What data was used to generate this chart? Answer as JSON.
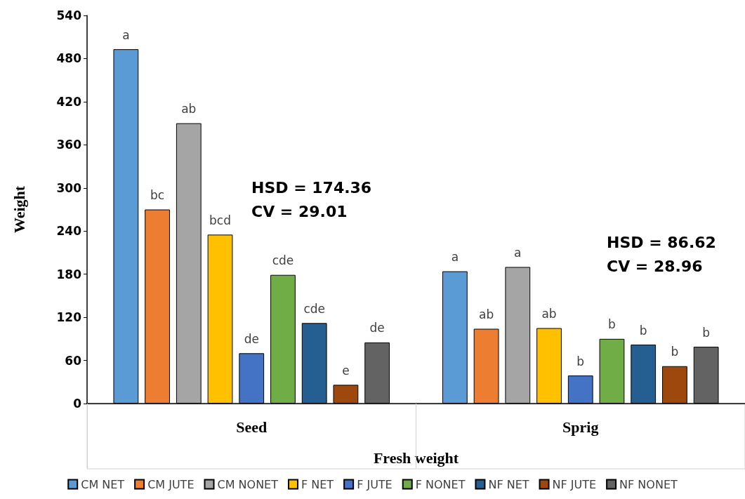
{
  "chart_data": {
    "type": "bar",
    "xlabel": "Fresh weight",
    "ylabel": "Weight",
    "categories": [
      "Seed",
      "Sprig"
    ],
    "series": [
      {
        "name": "CM NET",
        "color": "#5b9bd5",
        "values": [
          493,
          184
        ],
        "value_labels": [
          "a",
          "a"
        ]
      },
      {
        "name": "CM JUTE",
        "color": "#ed7d31",
        "values": [
          270,
          104
        ],
        "value_labels": [
          "bc",
          "ab"
        ]
      },
      {
        "name": "CM NONET",
        "color": "#a5a5a5",
        "values": [
          390,
          190
        ],
        "value_labels": [
          "ab",
          "a"
        ]
      },
      {
        "name": "F NET",
        "color": "#ffc000",
        "values": [
          235,
          105
        ],
        "value_labels": [
          "bcd",
          "ab"
        ]
      },
      {
        "name": "F JUTE",
        "color": "#4472c4",
        "values": [
          70,
          39
        ],
        "value_labels": [
          "de",
          "b"
        ]
      },
      {
        "name": "F NONET",
        "color": "#70ad47",
        "values": [
          179,
          90
        ],
        "value_labels": [
          "cde",
          "b"
        ]
      },
      {
        "name": "NF NET",
        "color": "#255e91",
        "values": [
          112,
          82
        ],
        "value_labels": [
          "cde",
          "b"
        ]
      },
      {
        "name": "NF JUTE",
        "color": "#9e480e",
        "values": [
          26,
          52
        ],
        "value_labels": [
          "e",
          "b"
        ]
      },
      {
        "name": "NF NONET",
        "color": "#636363",
        "values": [
          85,
          79
        ],
        "value_labels": [
          "de",
          "b"
        ]
      }
    ],
    "ylim": [
      0,
      540
    ],
    "yticks": [
      0,
      60,
      120,
      180,
      240,
      300,
      360,
      420,
      480,
      540
    ],
    "grid": false,
    "legend": "bottom",
    "annotations": [
      "HSD = 174.36\nCV = 29.01",
      "HSD = 86.62\nCV = 28.96"
    ]
  }
}
